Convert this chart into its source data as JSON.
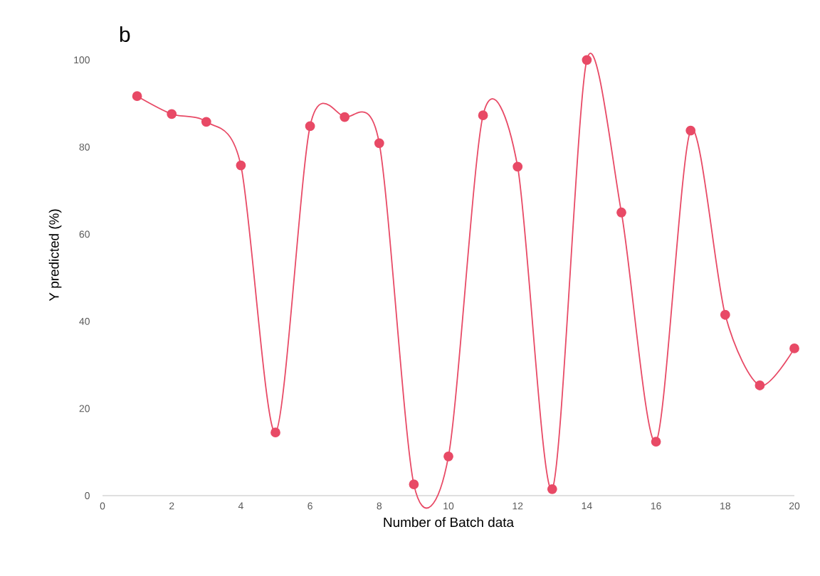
{
  "chart_data": {
    "type": "line",
    "xlabel": "Number of Batch data",
    "ylabel": "Y predicted (%)",
    "annotations": [
      "b"
    ],
    "x": [
      1,
      2,
      3,
      4,
      5,
      6,
      7,
      8,
      9,
      10,
      11,
      12,
      13,
      14,
      15,
      16,
      17,
      18,
      19,
      20
    ],
    "series": [
      {
        "color": "#e84a66",
        "values": [
          91.7,
          87.6,
          85.8,
          75.8,
          14.5,
          84.8,
          86.9,
          80.9,
          2.6,
          9.0,
          87.3,
          75.5,
          1.5,
          100,
          65.0,
          12.4,
          83.8,
          41.5,
          25.3,
          33.8
        ]
      }
    ],
    "xlim": [
      0,
      20
    ],
    "xticks": [
      0,
      2,
      4,
      6,
      8,
      10,
      12,
      14,
      16,
      18,
      20
    ],
    "ylim": [
      0,
      100
    ],
    "yticks": [
      0,
      20,
      40,
      60,
      80,
      100
    ],
    "grid": false,
    "marker": "circle",
    "line_style": "solid"
  }
}
